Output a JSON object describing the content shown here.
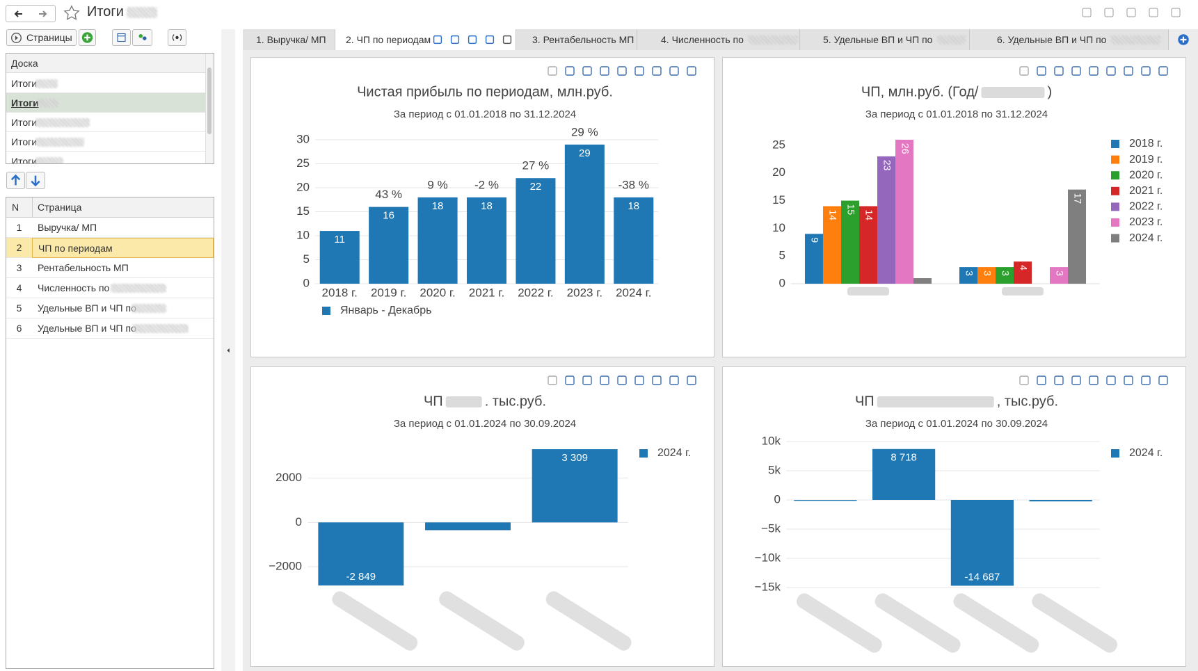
{
  "window": {
    "title": "Итоги"
  },
  "toolbar": {
    "pages_button": "Страницы"
  },
  "board": {
    "header": "Доска",
    "items": [
      "Итоги",
      "Итоги",
      "Итоги",
      "Итоги",
      "Итоги"
    ],
    "selected": 1
  },
  "pages": {
    "columns": [
      "N",
      "Страница"
    ],
    "rows": [
      [
        1,
        "Выручка/ МП"
      ],
      [
        2,
        "ЧП по периодам"
      ],
      [
        3,
        "Рентабельность МП"
      ],
      [
        4,
        "Численность по"
      ],
      [
        5,
        "Удельные ВП и ЧП по"
      ],
      [
        6,
        "Удельные ВП и ЧП по"
      ]
    ],
    "selected": 1
  },
  "tabs": [
    "1. Выручка/ МП",
    "2. ЧП по периодам",
    "3. Рентабельность МП",
    "4. Численность по",
    "5. Удельные ВП и ЧП по",
    "6. Удельные ВП и ЧП по"
  ],
  "active_tab": 1,
  "chart_data": [
    {
      "type": "bar",
      "title": "Чистая прибыль по периодам, млн.руб.",
      "subtitle": "За период с 01.01.2018 по 31.12.2024",
      "categories": [
        "2018 г.",
        "2019 г.",
        "2020 г.",
        "2021 г.",
        "2022 г.",
        "2023 г.",
        "2024 г."
      ],
      "series": [
        {
          "name": "Январь - Декабрь",
          "color": "#1f77b4",
          "values": [
            11,
            16,
            18,
            18,
            22,
            29,
            18
          ]
        }
      ],
      "annotations": [
        null,
        "43 %",
        "9 %",
        "-2 %",
        "27 %",
        "29 %",
        "-38 %"
      ],
      "ylim": [
        0,
        30
      ],
      "yticks": [
        0,
        5,
        10,
        15,
        20,
        25,
        30
      ],
      "grid": true,
      "data_labels": true,
      "legend": "bottom"
    },
    {
      "type": "bar",
      "title": [
        "ЧП, млн.руб. (Год/",
        ")"
      ],
      "subtitle": "За период с 01.01.2018 по 31.12.2024",
      "categories": [
        null,
        null
      ],
      "series": [
        {
          "name": "2018 г.",
          "color": "#1f77b4",
          "values": [
            9,
            3
          ]
        },
        {
          "name": "2019 г.",
          "color": "#ff7f0e",
          "values": [
            14,
            3
          ]
        },
        {
          "name": "2020 г.",
          "color": "#2ca02c",
          "values": [
            15,
            3
          ]
        },
        {
          "name": "2021 г.",
          "color": "#d62728",
          "values": [
            14,
            4
          ]
        },
        {
          "name": "2022 г.",
          "color": "#9467bd",
          "values": [
            23,
            null
          ]
        },
        {
          "name": "2023 г.",
          "color": "#e377c2",
          "values": [
            26,
            3
          ]
        },
        {
          "name": "2024 г.",
          "color": "#7f7f7f",
          "values": [
            1,
            17
          ]
        }
      ],
      "ylim": [
        0,
        27.5
      ],
      "yticks": [
        0,
        5,
        10,
        15,
        20,
        25
      ],
      "grid": false,
      "data_labels": true,
      "data_label_angle": 90,
      "legend": "right"
    },
    {
      "type": "bar",
      "title": [
        "ЧП",
        ". тыс.руб."
      ],
      "subtitle": "За период с 01.01.2024 по 30.09.2024",
      "categories": [
        null,
        null,
        null
      ],
      "series": [
        {
          "name": "2024 г.",
          "color": "#1f77b4",
          "values": [
            -2849,
            -350,
            3309
          ],
          "value_labels": [
            "-2 849",
            null,
            "3 309"
          ]
        }
      ],
      "ylim": [
        -2850,
        3310
      ],
      "yticks": [
        {
          "value": -2000,
          "label": "−2000"
        },
        0,
        2000
      ],
      "grid": true,
      "data_labels": true,
      "legend": "right"
    },
    {
      "type": "bar",
      "title": [
        "ЧП",
        ", тыс.руб."
      ],
      "subtitle": "За период с 01.01.2024 по 30.09.2024",
      "categories": [
        null,
        null,
        null,
        null
      ],
      "series": [
        {
          "name": "2024 г.",
          "color": "#1f77b4",
          "values": [
            -150,
            8718,
            -14687,
            -250
          ],
          "value_labels": [
            null,
            "8 718",
            "-14 687",
            null
          ]
        }
      ],
      "ylim": [
        -15000,
        10000
      ],
      "yticks": [
        {
          "value": -15000,
          "label": "−15k"
        },
        {
          "value": -10000,
          "label": "−10k"
        },
        {
          "value": -5000,
          "label": "−5k"
        },
        0,
        {
          "value": 5000,
          "label": "5k"
        },
        {
          "value": 10000,
          "label": "10k"
        }
      ],
      "grid": true,
      "data_labels": true,
      "legend": "right"
    }
  ]
}
